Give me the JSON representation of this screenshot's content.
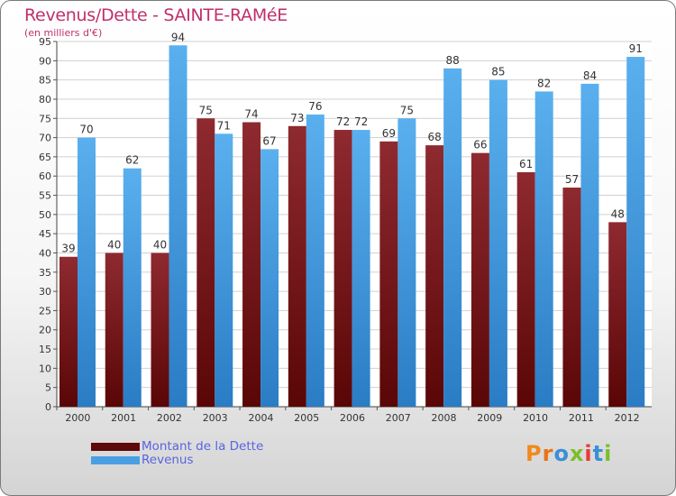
{
  "title": "Revenus/Dette - SAINTE-RAMéE",
  "subtitle": "(en milliers d'€)",
  "colors": {
    "dette": "#6b1a1f",
    "revenus": "#4da3e6",
    "title": "#c0306a",
    "legend_text": "#5a63e0"
  },
  "legend": [
    {
      "label": "Montant de la Dette",
      "color": "#5e0a0a"
    },
    {
      "label": "Revenus",
      "color": "#4a9fe3"
    }
  ],
  "logo": {
    "text": "Proxiti",
    "letters": [
      "P",
      "r",
      "o",
      "x",
      "i",
      "t",
      "i"
    ]
  },
  "chart_data": {
    "type": "bar",
    "title": "Revenus/Dette - SAINTE-RAMéE",
    "ylabel": "(en milliers d'€)",
    "xlabel": "",
    "ylim": [
      0,
      95
    ],
    "ytick_step": 5,
    "ytick_labels": [
      "0",
      "5",
      "10",
      "15",
      "20",
      "25",
      "30",
      "35",
      "40",
      "45",
      "50",
      "55",
      "60",
      "65",
      "70",
      "75",
      "80",
      "85",
      "90",
      "95"
    ],
    "grid": true,
    "categories": [
      "2000",
      "2001",
      "2002",
      "2003",
      "2004",
      "2005",
      "2006",
      "2007",
      "2008",
      "2009",
      "2010",
      "2011",
      "2012"
    ],
    "series": [
      {
        "name": "Montant de la Dette",
        "values": [
          39,
          40,
          40,
          75,
          74,
          73,
          72,
          69,
          68,
          66,
          61,
          57,
          48
        ]
      },
      {
        "name": "Revenus",
        "values": [
          70,
          62,
          94,
          71,
          67,
          76,
          72,
          75,
          88,
          85,
          82,
          84,
          91
        ]
      }
    ]
  }
}
